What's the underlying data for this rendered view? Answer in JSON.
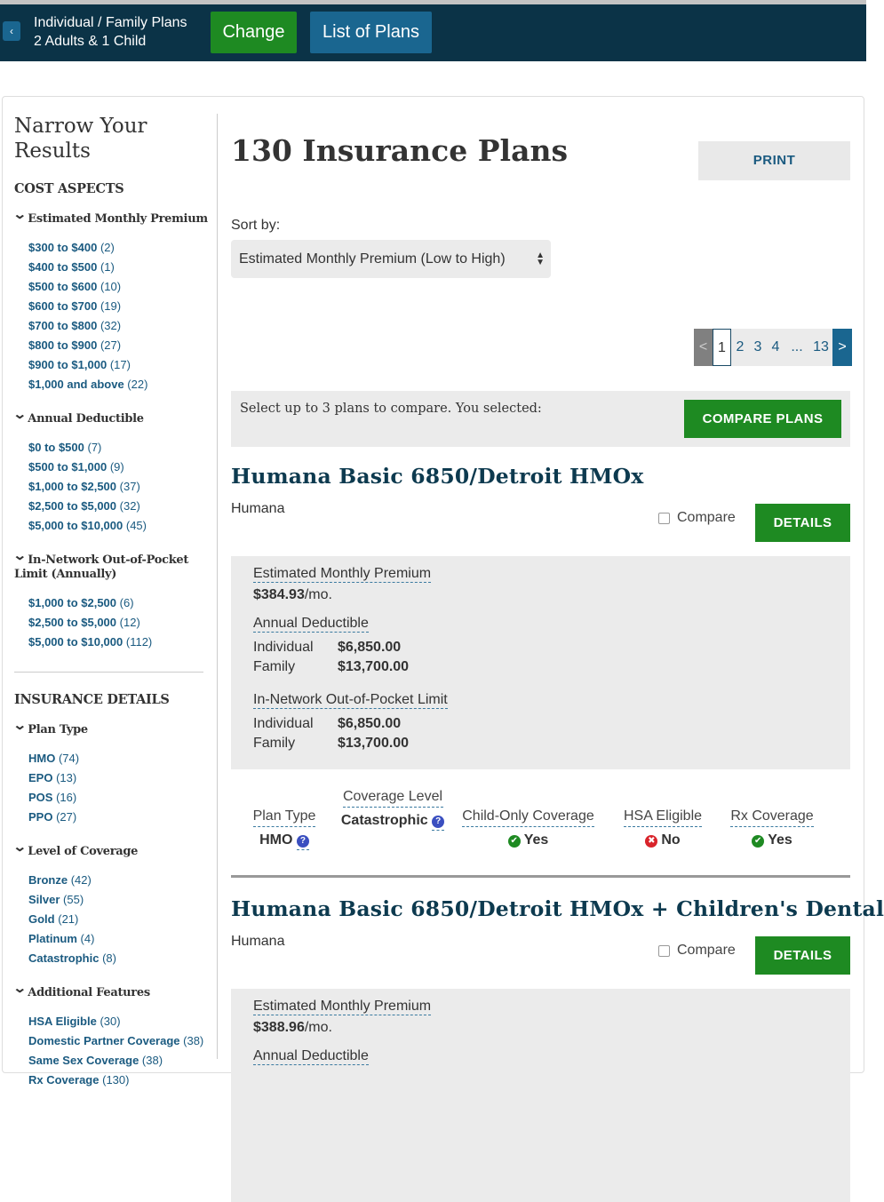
{
  "header": {
    "back_icon": "chevron-left-icon",
    "line1": "Individual / Family Plans",
    "line2": "2 Adults & 1 Child",
    "change_label": "Change",
    "list_label": "List of Plans"
  },
  "sidebar": {
    "title": "Narrow Your Results",
    "sections": [
      {
        "title": "COST ASPECTS",
        "groups": [
          {
            "label": "Estimated Monthly Premium",
            "items": [
              {
                "label": "$300 to $400",
                "count": "(2)"
              },
              {
                "label": "$400 to $500",
                "count": "(1)"
              },
              {
                "label": "$500 to $600",
                "count": "(10)"
              },
              {
                "label": "$600 to $700",
                "count": "(19)"
              },
              {
                "label": "$700 to $800",
                "count": "(32)"
              },
              {
                "label": "$800 to $900",
                "count": "(27)"
              },
              {
                "label": "$900 to $1,000",
                "count": "(17)"
              },
              {
                "label": "$1,000 and above",
                "count": "(22)"
              }
            ]
          },
          {
            "label": "Annual Deductible",
            "items": [
              {
                "label": "$0 to $500",
                "count": "(7)"
              },
              {
                "label": "$500 to $1,000",
                "count": "(9)"
              },
              {
                "label": "$1,000 to $2,500",
                "count": "(37)"
              },
              {
                "label": "$2,500 to $5,000",
                "count": "(32)"
              },
              {
                "label": "$5,000 to $10,000",
                "count": "(45)"
              }
            ]
          },
          {
            "label": "In-Network Out-of-Pocket Limit (Annually)",
            "items": [
              {
                "label": "$1,000 to $2,500",
                "count": "(6)"
              },
              {
                "label": "$2,500 to $5,000",
                "count": "(12)"
              },
              {
                "label": "$5,000 to $10,000",
                "count": "(112)"
              }
            ]
          }
        ]
      },
      {
        "title": "INSURANCE DETAILS",
        "groups": [
          {
            "label": "Plan Type",
            "items": [
              {
                "label": "HMO",
                "count": "(74)"
              },
              {
                "label": "EPO",
                "count": "(13)"
              },
              {
                "label": "POS",
                "count": "(16)"
              },
              {
                "label": "PPO",
                "count": "(27)"
              }
            ]
          },
          {
            "label": "Level of Coverage",
            "items": [
              {
                "label": "Bronze",
                "count": "(42)"
              },
              {
                "label": "Silver",
                "count": "(55)"
              },
              {
                "label": "Gold",
                "count": "(21)"
              },
              {
                "label": "Platinum",
                "count": "(4)"
              },
              {
                "label": "Catastrophic",
                "count": "(8)"
              }
            ]
          },
          {
            "label": "Additional Features",
            "items": [
              {
                "label": "HSA Eligible",
                "count": "(30)"
              },
              {
                "label": "Domestic Partner Coverage",
                "count": "(38)"
              },
              {
                "label": "Same Sex Coverage",
                "count": "(38)"
              },
              {
                "label": "Rx Coverage",
                "count": "(130)"
              }
            ]
          }
        ]
      }
    ]
  },
  "main": {
    "title": "130 Insurance Plans",
    "print_label": "PRINT",
    "sort_label": "Sort by:",
    "sort_value": "Estimated Monthly Premium (Low to High)",
    "pagination": {
      "prev": "<",
      "pages": [
        "1",
        "2",
        "3",
        "4"
      ],
      "ellipsis": "...",
      "last": "13",
      "next": ">",
      "current": "1"
    },
    "compare_text": "Select up to 3 plans to compare. You selected:",
    "compare_button": "COMPARE PLANS"
  },
  "labels": {
    "compare": "Compare",
    "details": "DETAILS",
    "premium": "Estimated Monthly Premium",
    "per_month": "/mo.",
    "deductible": "Annual Deductible",
    "oop": "In-Network Out-of-Pocket Limit",
    "individual": "Individual",
    "family": "Family",
    "plan_type": "Plan Type",
    "coverage_level": "Coverage Level",
    "child_only": "Child-Only Coverage",
    "hsa": "HSA Eligible",
    "rx": "Rx Coverage"
  },
  "plans": [
    {
      "name": "Humana Basic 6850/Detroit HMOx",
      "issuer": "Humana",
      "premium": "$384.93",
      "deductible": {
        "individual": "$6,850.00",
        "family": "$13,700.00"
      },
      "oop": {
        "individual": "$6,850.00",
        "family": "$13,700.00"
      },
      "plan_type": "HMO",
      "coverage_level": "Catastrophic",
      "child_only": "Yes",
      "hsa": "No",
      "rx": "Yes"
    },
    {
      "name": "Humana Basic 6850/Detroit HMOx + Children's Dental",
      "issuer": "Humana",
      "premium": "$388.96",
      "deductible_label_partial": "Annual Deductible"
    }
  ],
  "colors": {
    "header_bg": "#0b3347",
    "green": "#1e8a22",
    "blue": "#1a6690",
    "link": "#1a5a80"
  }
}
